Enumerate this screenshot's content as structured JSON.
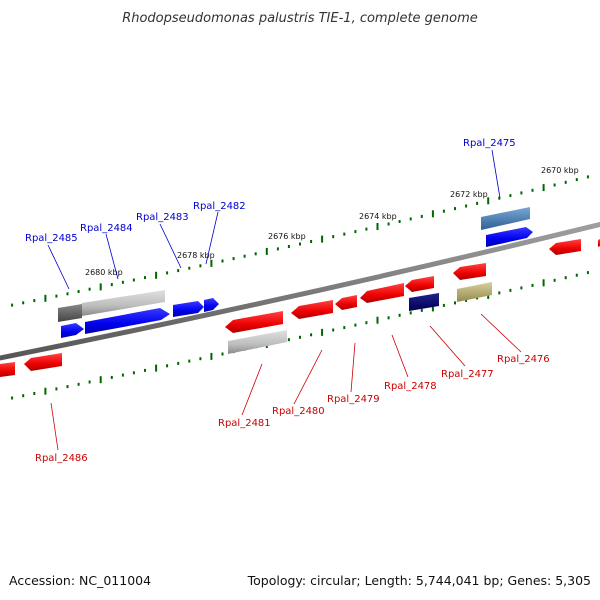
{
  "title": "Rhodopseudomonas palustris TIE-1, complete genome",
  "footer": {
    "accession": "Accession: NC_011004",
    "info": "Topology: circular; Length: 5,744,041 bp; Genes: 5,305"
  },
  "scale_labels": [
    "2670 kbp",
    "2672 kbp",
    "2674 kbp",
    "2676 kbp",
    "2678 kbp",
    "2680 kbp"
  ],
  "genes_top": [
    "Rpal_2475",
    "Rpal_2482",
    "Rpal_2483",
    "Rpal_2484",
    "Rpal_2485"
  ],
  "genes_bottom": [
    "Rpal_2476",
    "Rpal_2477",
    "Rpal_2478",
    "Rpal_2479",
    "Rpal_2480",
    "Rpal_2481",
    "Rpal_2486"
  ],
  "colors": {
    "forward_gene_label": "#0000cc",
    "reverse_gene_label": "#cc0000",
    "tick": "#006600",
    "backbone": "#777777"
  }
}
